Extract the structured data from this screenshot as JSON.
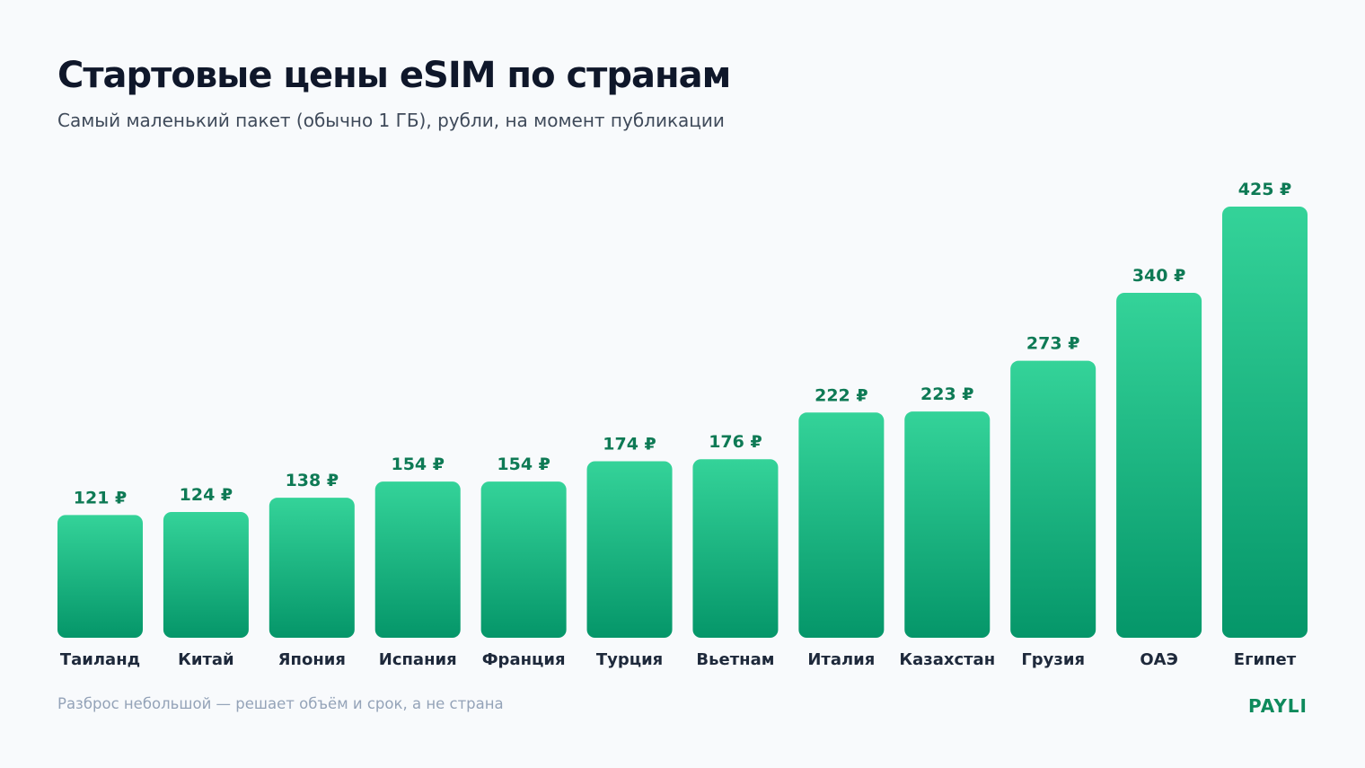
{
  "colors": {
    "background": "#f8fafc",
    "bar_top": "#34d399",
    "bar_bottom": "#059669",
    "value_label": "#0e7a55",
    "category_label": "#1e293b",
    "title": "#0f172a",
    "subtitle": "#3f4a5a",
    "footnote": "#94a3b8",
    "brand": "#0e8a5c"
  },
  "header": {
    "title": "Стартовые цены eSIM по странам",
    "subtitle": "Самый маленький пакет (обычно 1 ГБ), рубли, на момент публикации"
  },
  "footer": {
    "note": "Разброс небольшой — решает объём и срок, а не страна",
    "brand": "PAYLI"
  },
  "chart_data": {
    "type": "bar",
    "title": "Стартовые цены eSIM по странам",
    "subtitle": "Самый маленький пакет (обычно 1 ГБ), рубли, на момент публикации",
    "xlabel": "",
    "ylabel": "",
    "grid": false,
    "legend": "none",
    "value_suffix": "₽",
    "categories": [
      "Таиланд",
      "Китай",
      "Япония",
      "Испания",
      "Франция",
      "Турция",
      "Вьетнам",
      "Италия",
      "Казахстан",
      "Грузия",
      "ОАЭ",
      "Египет"
    ],
    "values": [
      121,
      124,
      138,
      154,
      154,
      174,
      176,
      222,
      223,
      273,
      340,
      425
    ],
    "data_labels": [
      "121 ₽",
      "124 ₽",
      "138 ₽",
      "154 ₽",
      "154 ₽",
      "174 ₽",
      "176 ₽",
      "222 ₽",
      "223 ₽",
      "273 ₽",
      "340 ₽",
      "425 ₽"
    ],
    "ylim": [
      0,
      425
    ]
  }
}
